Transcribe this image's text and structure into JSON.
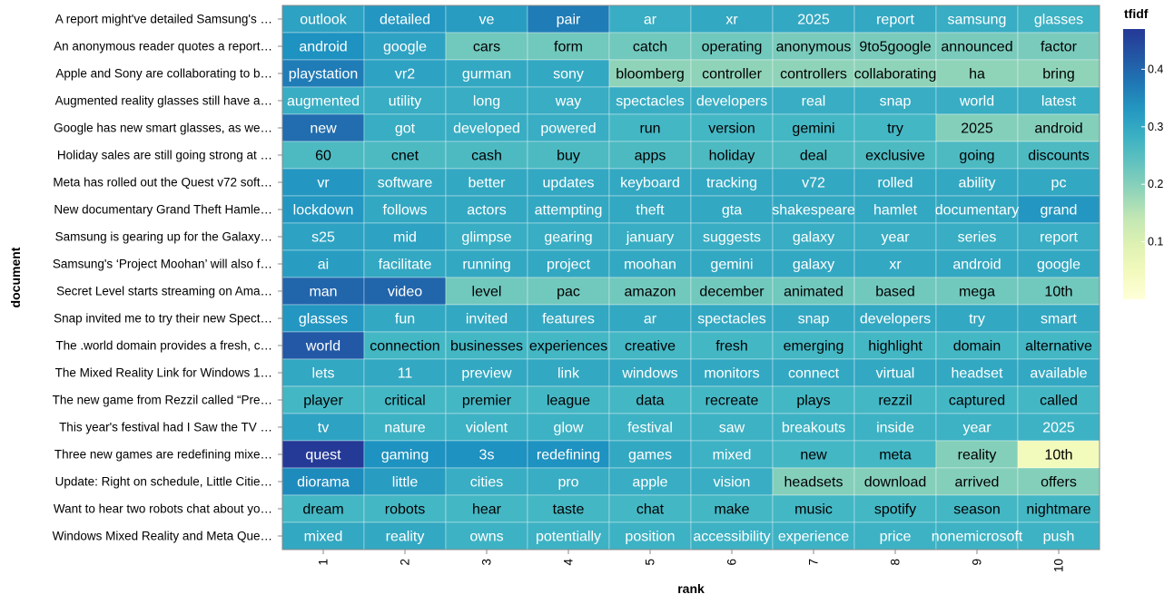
{
  "chart_data": {
    "type": "heatmap",
    "xlabel": "rank",
    "ylabel": "document",
    "x_categories": [
      "1",
      "2",
      "3",
      "4",
      "5",
      "6",
      "7",
      "8",
      "9",
      "10"
    ],
    "documents": [
      "A report might've detailed Samsung's …",
      "An anonymous reader quotes a report…",
      "Apple and Sony are collaborating to b…",
      "Augmented reality glasses still have a…",
      "Google has new smart glasses, as we…",
      "Holiday sales are still going strong at …",
      "Meta has rolled out the Quest v72 soft…",
      "New documentary Grand Theft Hamle…",
      "Samsung is gearing up for the Galaxy…",
      "Samsung's ‘Project Moohan’ will also f…",
      "Secret Level starts streaming on Ama…",
      "Snap invited me to try their new Spect…",
      "The .world domain provides a fresh, c…",
      "The Mixed Reality Link for Windows 1…",
      "The new game from Rezzil called “Pre…",
      "This year's festival had I Saw the TV …",
      "Three new games are redefining mixe…",
      "Update: Right on schedule, Little Citie…",
      "Want to hear two robots chat about yo…",
      "Windows Mixed Reality and Meta Que…"
    ],
    "words": [
      [
        "outlook",
        "detailed",
        "ve",
        "pair",
        "ar",
        "xr",
        "2025",
        "report",
        "samsung",
        "glasses"
      ],
      [
        "android",
        "google",
        "cars",
        "form",
        "catch",
        "operating",
        "anonymous",
        "9to5google",
        "announced",
        "factor"
      ],
      [
        "playstation",
        "vr2",
        "gurman",
        "sony",
        "bloomberg",
        "controller",
        "controllers",
        "collaborating",
        "ha",
        "bring"
      ],
      [
        "augmented",
        "utility",
        "long",
        "way",
        "spectacles",
        "developers",
        "real",
        "snap",
        "world",
        "latest"
      ],
      [
        "new",
        "got",
        "developed",
        "powered",
        "run",
        "version",
        "gemini",
        "try",
        "2025",
        "android"
      ],
      [
        "60",
        "cnet",
        "cash",
        "buy",
        "apps",
        "holiday",
        "deal",
        "exclusive",
        "going",
        "discounts"
      ],
      [
        "vr",
        "software",
        "better",
        "updates",
        "keyboard",
        "tracking",
        "v72",
        "rolled",
        "ability",
        "pc"
      ],
      [
        "lockdown",
        "follows",
        "actors",
        "attempting",
        "theft",
        "gta",
        "shakespeare",
        "hamlet",
        "documentary",
        "grand"
      ],
      [
        "s25",
        "mid",
        "glimpse",
        "gearing",
        "january",
        "suggests",
        "galaxy",
        "year",
        "series",
        "report"
      ],
      [
        "ai",
        "facilitate",
        "running",
        "project",
        "moohan",
        "gemini",
        "galaxy",
        "xr",
        "android",
        "google"
      ],
      [
        "man",
        "video",
        "level",
        "pac",
        "amazon",
        "december",
        "animated",
        "based",
        "mega",
        "10th"
      ],
      [
        "glasses",
        "fun",
        "invited",
        "features",
        "ar",
        "spectacles",
        "snap",
        "developers",
        "try",
        "smart"
      ],
      [
        "world",
        "connection",
        "businesses",
        "experiences",
        "creative",
        "fresh",
        "emerging",
        "highlight",
        "domain",
        "alternative"
      ],
      [
        "lets",
        "11",
        "preview",
        "link",
        "windows",
        "monitors",
        "connect",
        "virtual",
        "headset",
        "available"
      ],
      [
        "player",
        "critical",
        "premier",
        "league",
        "data",
        "recreate",
        "plays",
        "rezzil",
        "captured",
        "called"
      ],
      [
        "tv",
        "nature",
        "violent",
        "glow",
        "festival",
        "saw",
        "breakouts",
        "inside",
        "year",
        "2025"
      ],
      [
        "quest",
        "gaming",
        "3s",
        "redefining",
        "games",
        "mixed",
        "new",
        "meta",
        "reality",
        "10th"
      ],
      [
        "diorama",
        "little",
        "cities",
        "pro",
        "apple",
        "vision",
        "headsets",
        "download",
        "arrived",
        "offers"
      ],
      [
        "dream",
        "robots",
        "hear",
        "taste",
        "chat",
        "make",
        "music",
        "spotify",
        "season",
        "nightmare"
      ],
      [
        "mixed",
        "reality",
        "owns",
        "potentially",
        "position",
        "accessibility",
        "experience",
        "price",
        "nonemicrosoft",
        "push"
      ]
    ],
    "tfidf": [
      [
        0.31,
        0.33,
        0.32,
        0.37,
        0.29,
        0.3,
        0.3,
        0.3,
        0.29,
        0.28
      ],
      [
        0.34,
        0.31,
        0.22,
        0.22,
        0.22,
        0.22,
        0.21,
        0.21,
        0.21,
        0.21
      ],
      [
        0.37,
        0.31,
        0.3,
        0.3,
        0.19,
        0.19,
        0.19,
        0.19,
        0.19,
        0.19
      ],
      [
        0.29,
        0.29,
        0.29,
        0.29,
        0.29,
        0.29,
        0.29,
        0.29,
        0.29,
        0.29
      ],
      [
        0.39,
        0.29,
        0.29,
        0.29,
        0.27,
        0.27,
        0.27,
        0.27,
        0.2,
        0.2
      ],
      [
        0.26,
        0.26,
        0.26,
        0.26,
        0.26,
        0.26,
        0.26,
        0.26,
        0.26,
        0.26
      ],
      [
        0.33,
        0.3,
        0.3,
        0.3,
        0.3,
        0.3,
        0.3,
        0.3,
        0.3,
        0.3
      ],
      [
        0.33,
        0.3,
        0.3,
        0.3,
        0.3,
        0.3,
        0.3,
        0.3,
        0.3,
        0.33
      ],
      [
        0.31,
        0.31,
        0.29,
        0.29,
        0.29,
        0.29,
        0.29,
        0.29,
        0.29,
        0.29
      ],
      [
        0.32,
        0.3,
        0.3,
        0.3,
        0.3,
        0.3,
        0.3,
        0.3,
        0.3,
        0.3
      ],
      [
        0.4,
        0.4,
        0.22,
        0.22,
        0.22,
        0.22,
        0.22,
        0.22,
        0.22,
        0.22
      ],
      [
        0.33,
        0.3,
        0.3,
        0.3,
        0.3,
        0.3,
        0.3,
        0.3,
        0.3,
        0.3
      ],
      [
        0.42,
        0.27,
        0.27,
        0.27,
        0.27,
        0.27,
        0.27,
        0.27,
        0.27,
        0.27
      ],
      [
        0.3,
        0.3,
        0.3,
        0.3,
        0.3,
        0.3,
        0.3,
        0.3,
        0.3,
        0.3
      ],
      [
        0.27,
        0.27,
        0.27,
        0.27,
        0.27,
        0.27,
        0.27,
        0.27,
        0.27,
        0.27
      ],
      [
        0.31,
        0.28,
        0.28,
        0.28,
        0.28,
        0.28,
        0.28,
        0.28,
        0.28,
        0.28
      ],
      [
        0.47,
        0.34,
        0.34,
        0.34,
        0.3,
        0.28,
        0.27,
        0.27,
        0.2,
        0.05
      ],
      [
        0.35,
        0.32,
        0.29,
        0.29,
        0.29,
        0.29,
        0.2,
        0.2,
        0.2,
        0.2
      ],
      [
        0.27,
        0.27,
        0.27,
        0.27,
        0.27,
        0.27,
        0.27,
        0.27,
        0.27,
        0.27
      ],
      [
        0.3,
        0.3,
        0.28,
        0.28,
        0.28,
        0.28,
        0.28,
        0.28,
        0.28,
        0.28
      ]
    ],
    "color_scale": "YlGnBu",
    "legend": {
      "title": "tfidf",
      "position": "right",
      "ticks": [
        0.1,
        0.2,
        0.3,
        0.4
      ],
      "domain": [
        0,
        0.47
      ]
    }
  }
}
